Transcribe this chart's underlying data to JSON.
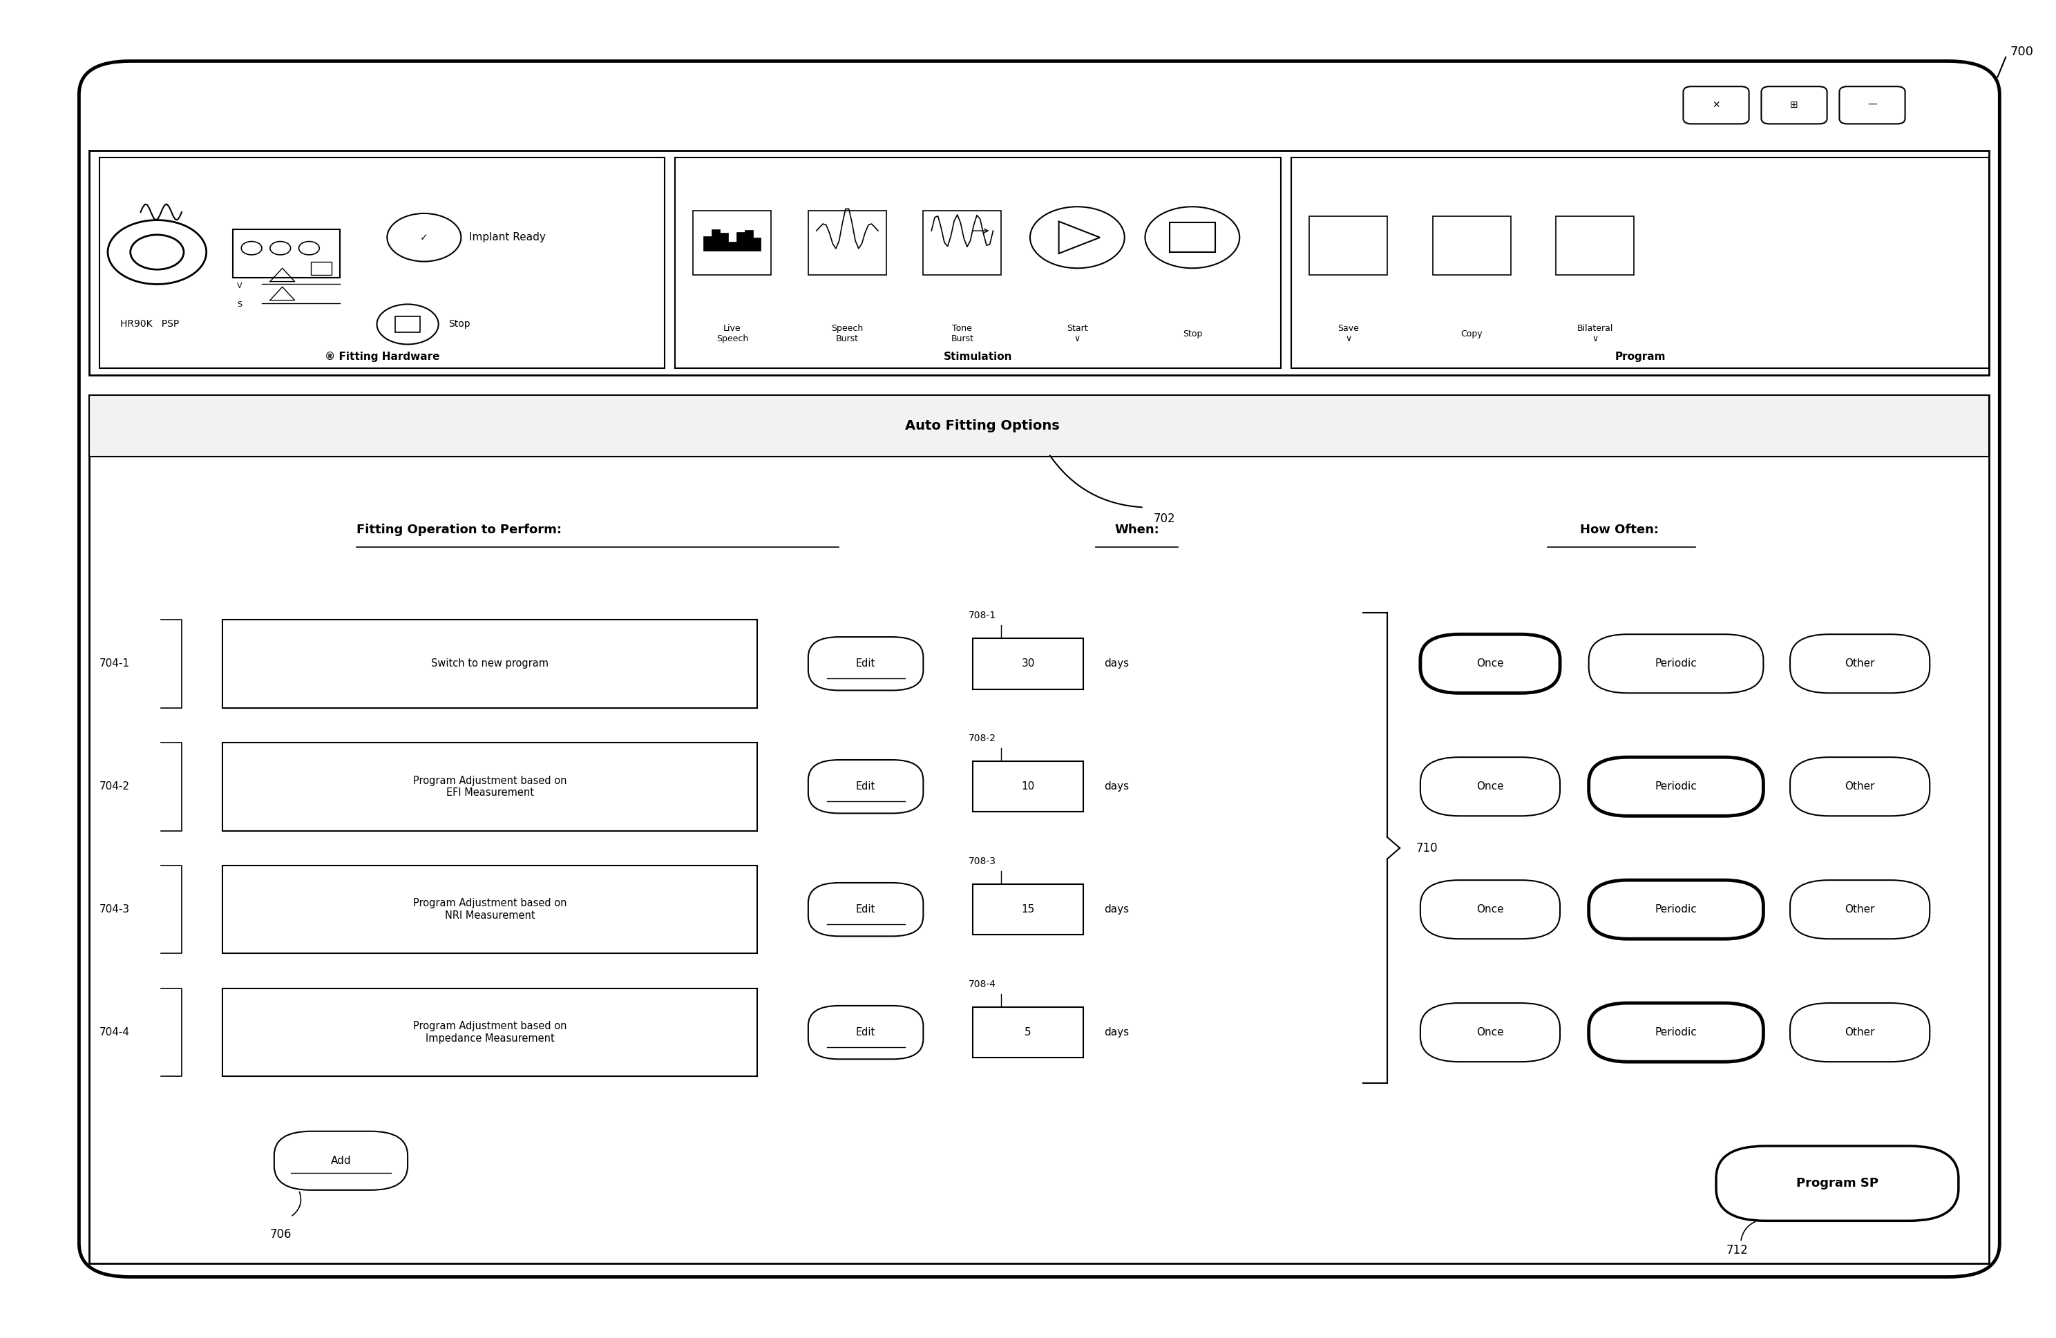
{
  "bg_color": "#ffffff",
  "fig_width": 29.76,
  "fig_height": 19.37,
  "title_ref": "700",
  "rows": [
    {
      "label": "Switch to new program",
      "days": "30",
      "ref_days": "708-1",
      "ref_row": "704-1",
      "once_bold": true,
      "periodic_bold": false
    },
    {
      "label": "Program Adjustment based on\nEFI Measurement",
      "days": "10",
      "ref_days": "708-2",
      "ref_row": "704-2",
      "once_bold": false,
      "periodic_bold": true
    },
    {
      "label": "Program Adjustment based on\nNRI Measurement",
      "days": "15",
      "ref_days": "708-3",
      "ref_row": "704-3",
      "once_bold": false,
      "periodic_bold": true
    },
    {
      "label": "Program Adjustment based on\nImpedance Measurement",
      "days": "5",
      "ref_days": "708-4",
      "ref_row": "704-4",
      "once_bold": false,
      "periodic_bold": true
    }
  ]
}
